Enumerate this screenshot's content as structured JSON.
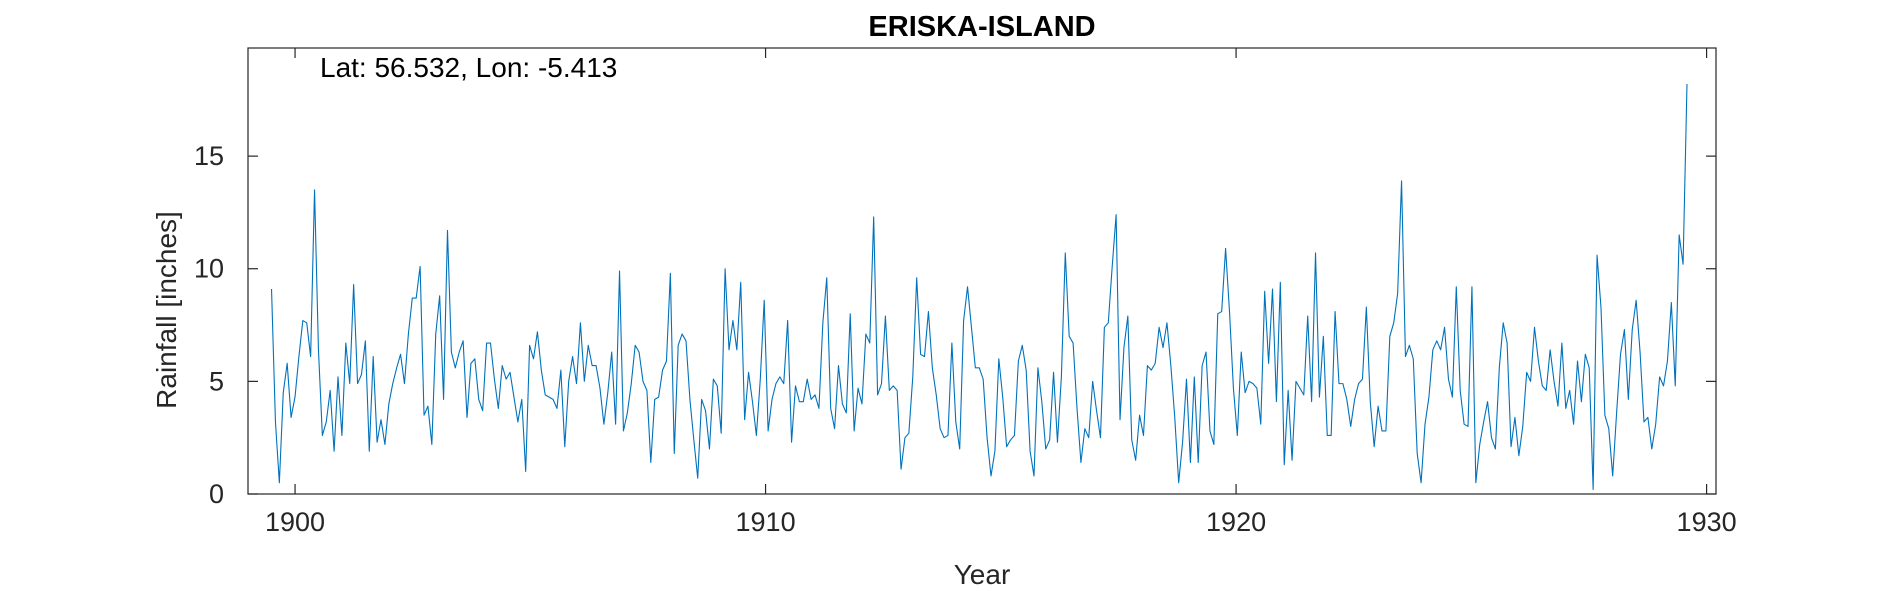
{
  "chart_data": {
    "type": "line",
    "title": "ERISKA-ISLAND",
    "annotation": "Lat: 56.532, Lon: -5.413",
    "xlabel": "Year",
    "ylabel": "Rainfall [inches]",
    "xlim": [
      1899,
      1930.2
    ],
    "ylim": [
      0,
      19.8
    ],
    "xticks": [
      1900,
      1910,
      1920,
      1930
    ],
    "yticks": [
      0,
      5,
      10,
      15
    ],
    "grid": false,
    "line_color": "#0072BD",
    "x_start": "1899-07",
    "x_end": "1929-08",
    "series": [
      {
        "name": "",
        "values": [
          9.1,
          3.2,
          0.5,
          4.5,
          5.8,
          3.4,
          4.3,
          6.1,
          7.7,
          7.6,
          6.1,
          13.5,
          6.4,
          2.6,
          3.2,
          4.6,
          1.9,
          5.2,
          2.6,
          6.7,
          4.9,
          9.3,
          4.9,
          5.3,
          6.8,
          1.9,
          6.1,
          2.3,
          3.3,
          2.2,
          4.0,
          4.9,
          5.6,
          6.2,
          4.9,
          7.1,
          8.7,
          8.7,
          10.1,
          3.5,
          3.9,
          2.2,
          7.1,
          8.8,
          4.2,
          11.7,
          6.3,
          5.6,
          6.3,
          6.8,
          3.4,
          5.8,
          6.0,
          4.2,
          3.7,
          6.7,
          6.7,
          5.1,
          3.8,
          5.7,
          5.1,
          5.4,
          4.3,
          3.2,
          4.2,
          1.0,
          6.6,
          6.0,
          7.2,
          5.5,
          4.4,
          4.3,
          4.2,
          3.8,
          5.5,
          2.1,
          5.0,
          6.1,
          4.9,
          7.6,
          5.0,
          6.6,
          5.7,
          5.7,
          4.7,
          3.1,
          4.5,
          6.3,
          3.1,
          9.9,
          2.8,
          3.6,
          4.9,
          6.6,
          6.3,
          5.0,
          4.6,
          1.4,
          4.2,
          4.3,
          5.5,
          5.9,
          9.8,
          1.8,
          6.6,
          7.1,
          6.8,
          4.2,
          2.4,
          0.7,
          4.2,
          3.7,
          2.0,
          5.1,
          4.8,
          2.7,
          10.0,
          6.4,
          7.7,
          6.4,
          9.4,
          3.3,
          5.4,
          4.1,
          2.6,
          5.1,
          8.6,
          2.8,
          4.2,
          4.9,
          5.2,
          4.9,
          7.7,
          2.3,
          4.8,
          4.1,
          4.1,
          5.1,
          4.2,
          4.4,
          3.8,
          7.6,
          9.6,
          3.8,
          2.9,
          5.7,
          4.0,
          3.6,
          8.0,
          2.8,
          4.7,
          4.0,
          7.1,
          6.7,
          12.3,
          4.4,
          4.9,
          7.9,
          4.6,
          4.8,
          4.6,
          1.1,
          2.5,
          2.7,
          5.2,
          9.6,
          6.2,
          6.1,
          8.1,
          5.6,
          4.4,
          2.9,
          2.5,
          2.6,
          6.7,
          3.2,
          2.0,
          7.7,
          9.2,
          7.4,
          5.6,
          5.6,
          5.1,
          2.5,
          0.8,
          1.9,
          6.0,
          4.3,
          2.1,
          2.4,
          2.6,
          5.9,
          6.6,
          5.5,
          1.9,
          0.8,
          5.6,
          4.1,
          2.0,
          2.4,
          5.4,
          2.3,
          5.2,
          10.7,
          7.0,
          6.7,
          3.8,
          1.4,
          2.9,
          2.5,
          5.0,
          3.7,
          2.5,
          7.4,
          7.6,
          10.1,
          12.4,
          3.3,
          6.5,
          7.9,
          2.4,
          1.5,
          3.5,
          2.6,
          5.7,
          5.5,
          5.8,
          7.4,
          6.5,
          7.6,
          5.7,
          3.4,
          0.5,
          2.3,
          5.1,
          1.4,
          5.2,
          1.4,
          5.7,
          6.3,
          2.8,
          2.2,
          8.0,
          8.1,
          10.9,
          8.1,
          4.7,
          2.6,
          6.3,
          4.5,
          5.0,
          4.9,
          4.7,
          3.1,
          9.0,
          5.8,
          9.1,
          4.1,
          9.4,
          1.3,
          4.6,
          1.5,
          5.0,
          4.7,
          4.4,
          7.9,
          4.1,
          10.7,
          4.3,
          7.0,
          2.6,
          2.6,
          8.1,
          4.9,
          4.9,
          4.2,
          3.0,
          4.2,
          4.9,
          5.1,
          8.3,
          4.1,
          2.1,
          3.9,
          2.8,
          2.8,
          7.0,
          7.6,
          8.9,
          13.9,
          6.1,
          6.6,
          6.0,
          1.8,
          0.5,
          3.1,
          4.3,
          6.4,
          6.8,
          6.4,
          7.4,
          5.1,
          4.3,
          9.2,
          4.6,
          3.1,
          3.0,
          9.2,
          0.5,
          2.2,
          3.2,
          4.1,
          2.5,
          2.0,
          5.6,
          7.6,
          6.7,
          2.1,
          3.4,
          1.7,
          3.0,
          5.4,
          5.0,
          7.4,
          5.9,
          4.8,
          4.6,
          6.4,
          5.0,
          3.9,
          6.7,
          3.8,
          4.6,
          3.1,
          5.9,
          4.1,
          6.2,
          5.6,
          0.2,
          10.6,
          8.3,
          3.5,
          2.9,
          0.8,
          3.6,
          6.2,
          7.3,
          4.2,
          7.3,
          8.6,
          6.3,
          3.2,
          3.4,
          2.0,
          3.1,
          5.2,
          4.8,
          5.9,
          8.5,
          4.8,
          11.5,
          10.2,
          18.2
        ]
      }
    ]
  }
}
